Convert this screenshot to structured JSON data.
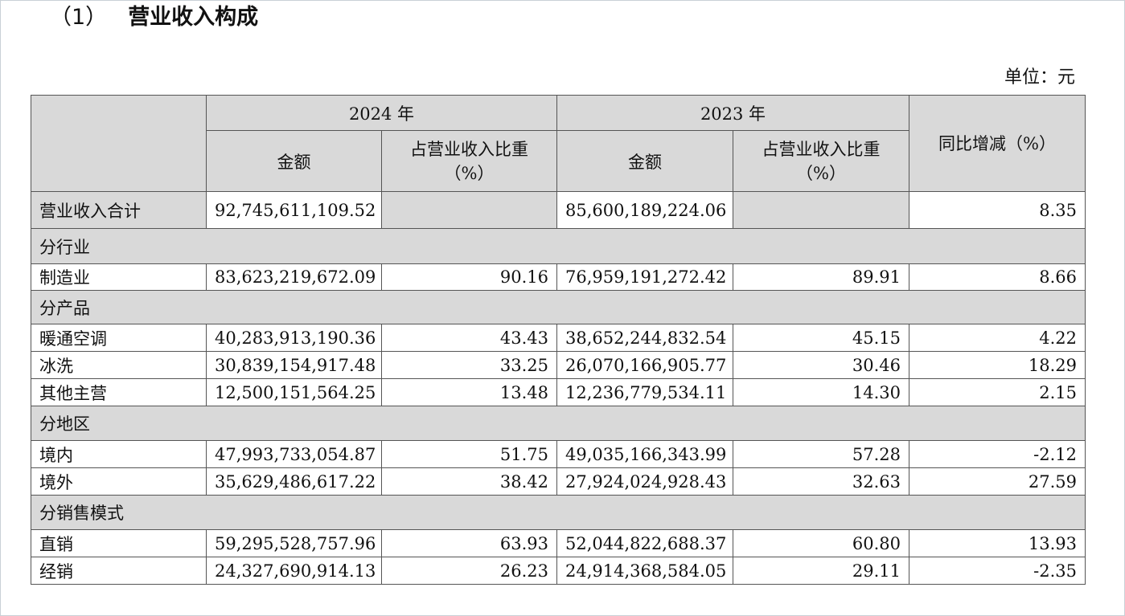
{
  "section": {
    "number": "（1）",
    "title": "营业收入构成"
  },
  "unit": "单位：元",
  "headers": {
    "year_2024": "2024 年",
    "year_2023": "2023 年",
    "amount": "金额",
    "ratio_line1": "占营业收入比重",
    "ratio_line2": "（%）",
    "yoy": "同比增减（%）"
  },
  "total": {
    "label": "营业收入合计",
    "amount_2024": "92,745,611,109.52",
    "amount_2023": "85,600,189,224.06",
    "yoy": "8.35"
  },
  "groups": [
    {
      "label": "分行业"
    },
    {
      "label": "分产品"
    },
    {
      "label": "分地区"
    },
    {
      "label": "分销售模式"
    }
  ],
  "rows": [
    {
      "label": "制造业",
      "amount_2024": "83,623,219,672.09",
      "ratio_2024": "90.16",
      "amount_2023": "76,959,191,272.42",
      "ratio_2023": "89.91",
      "yoy": "8.66"
    },
    {
      "label": "暖通空调",
      "amount_2024": "40,283,913,190.36",
      "ratio_2024": "43.43",
      "amount_2023": "38,652,244,832.54",
      "ratio_2023": "45.15",
      "yoy": "4.22"
    },
    {
      "label": "冰洗",
      "amount_2024": "30,839,154,917.48",
      "ratio_2024": "33.25",
      "amount_2023": "26,070,166,905.77",
      "ratio_2023": "30.46",
      "yoy": "18.29"
    },
    {
      "label": "其他主营",
      "amount_2024": "12,500,151,564.25",
      "ratio_2024": "13.48",
      "amount_2023": "12,236,779,534.11",
      "ratio_2023": "14.30",
      "yoy": "2.15"
    },
    {
      "label": "境内",
      "amount_2024": "47,993,733,054.87",
      "ratio_2024": "51.75",
      "amount_2023": "49,035,166,343.99",
      "ratio_2023": "57.28",
      "yoy": "-2.12"
    },
    {
      "label": "境外",
      "amount_2024": "35,629,486,617.22",
      "ratio_2024": "38.42",
      "amount_2023": "27,924,024,928.43",
      "ratio_2023": "32.63",
      "yoy": "27.59"
    },
    {
      "label": "直销",
      "amount_2024": "59,295,528,757.96",
      "ratio_2024": "63.93",
      "amount_2023": "52,044,822,688.37",
      "ratio_2023": "60.80",
      "yoy": "13.93"
    },
    {
      "label": "经销",
      "amount_2024": "24,327,690,914.13",
      "ratio_2024": "26.23",
      "amount_2023": "24,914,368,584.05",
      "ratio_2023": "29.11",
      "yoy": "-2.35"
    }
  ]
}
